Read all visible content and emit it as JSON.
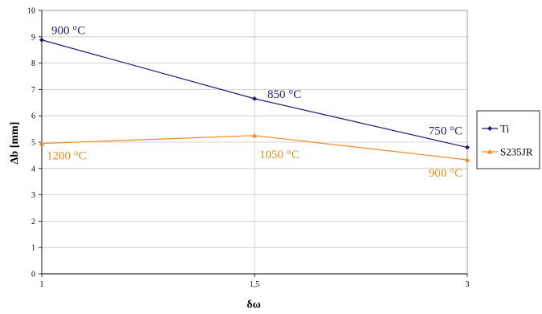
{
  "chart_data": {
    "type": "line",
    "categories": [
      "1",
      "1,5",
      "3"
    ],
    "ylim": [
      0,
      10
    ],
    "yticks": [
      0,
      1,
      2,
      3,
      4,
      5,
      6,
      7,
      8,
      9,
      10
    ],
    "xlabel": "δω",
    "ylabel": "Δb [mm]",
    "grid": true,
    "legend_position": "right",
    "series": [
      {
        "name": "Ti",
        "values": [
          8.88,
          6.65,
          4.8
        ],
        "color": "#1a1a7a",
        "marker": "diamond",
        "annotations": [
          "900 °C",
          "850 °C",
          "750 °C"
        ]
      },
      {
        "name": "S235JR",
        "values": [
          4.95,
          5.25,
          4.33
        ],
        "color": "#f08c1e",
        "marker": "triangle",
        "annotations": [
          "1200 °C",
          "1050 °C",
          "900 °C"
        ]
      }
    ]
  }
}
